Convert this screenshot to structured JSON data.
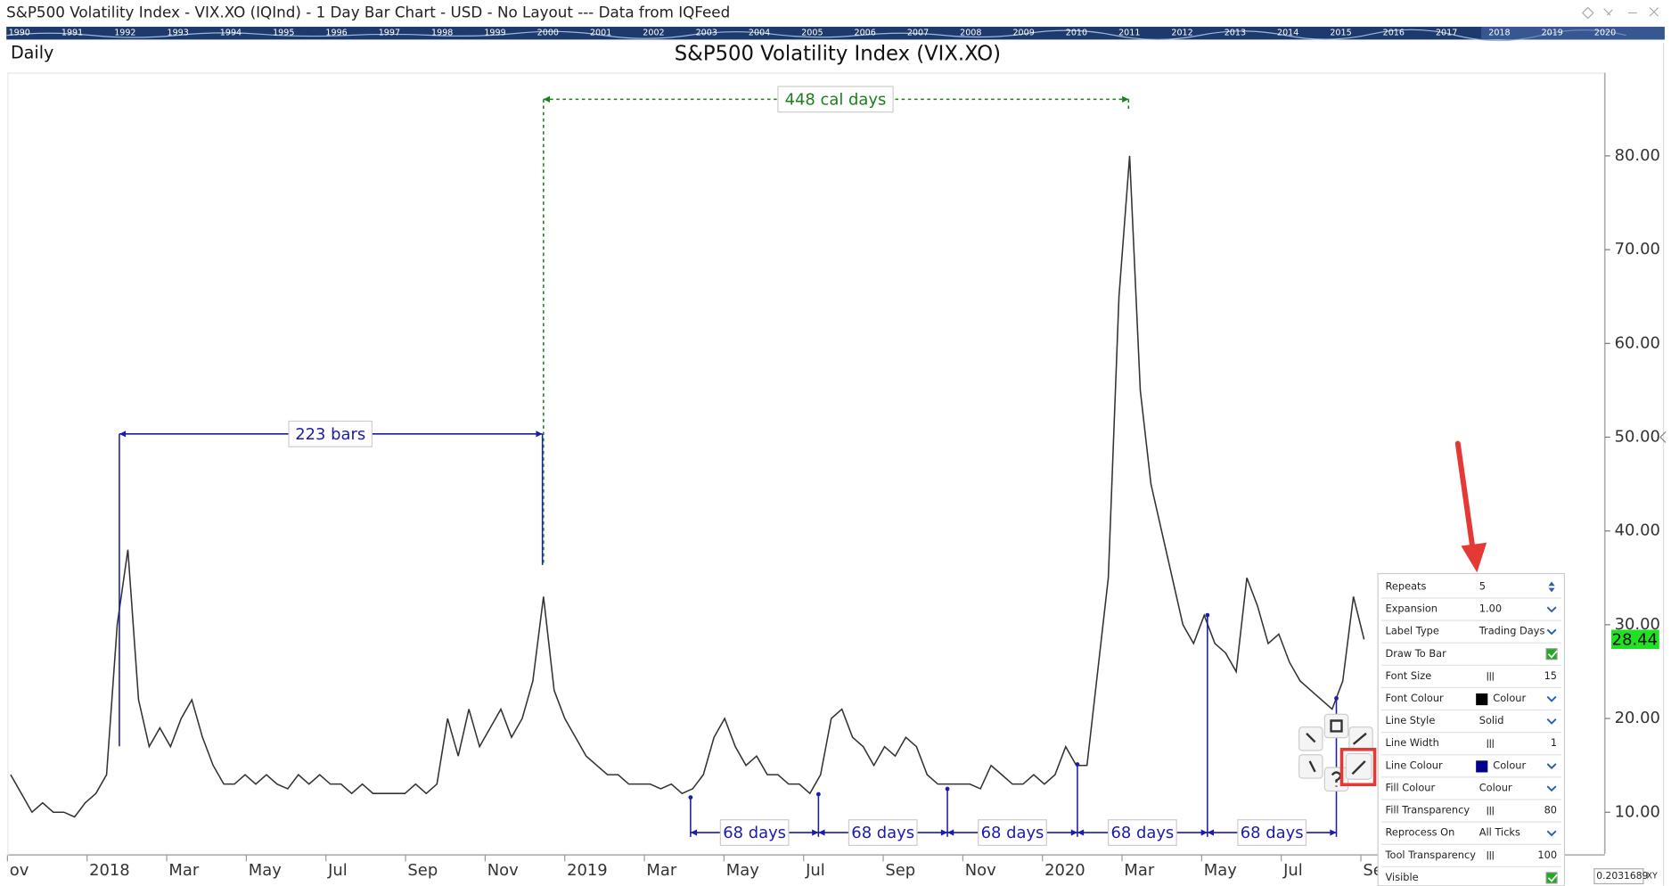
{
  "window": {
    "title": "S&P500 Volatility Index - VIX.XO (IQInd) - 1 Day Bar Chart - USD - No Layout --- Data from IQFeed",
    "overview_years": [
      "1990",
      "1991",
      "1992",
      "1993",
      "1994",
      "1995",
      "1996",
      "1997",
      "1998",
      "1999",
      "2000",
      "2001",
      "2002",
      "2003",
      "2004",
      "2005",
      "2006",
      "2007",
      "2008",
      "2009",
      "2010",
      "2011",
      "2012",
      "2013",
      "2014",
      "2015",
      "2016",
      "2017",
      "2018",
      "2019",
      "2020"
    ]
  },
  "chart_data": {
    "type": "line",
    "title": "S&P500 Volatility Index (VIX.XO)",
    "period": "Daily",
    "color": "#333333",
    "x_labels": [
      "ov",
      "2018",
      "Mar",
      "May",
      "Jul",
      "Sep",
      "Nov",
      "2019",
      "Mar",
      "May",
      "Jul",
      "Sep",
      "Nov",
      "2020",
      "Mar",
      "May",
      "Jul",
      "Sep"
    ],
    "values": [
      14,
      12,
      10,
      11,
      10,
      10,
      9.5,
      11,
      12,
      14,
      30,
      38,
      22,
      17,
      19,
      17,
      20,
      22,
      18,
      15,
      13,
      13,
      14,
      13,
      14,
      13,
      12.5,
      14,
      13,
      14,
      13,
      13,
      12,
      13,
      12,
      12,
      12,
      12,
      13,
      12,
      13,
      20,
      16,
      21,
      17,
      19,
      21,
      18,
      20,
      24,
      33,
      23,
      20,
      18,
      16,
      15,
      14,
      14,
      13,
      13,
      13,
      12.5,
      13,
      12,
      12.5,
      14,
      18,
      20,
      17,
      15,
      16,
      14,
      14,
      13,
      13,
      12,
      14,
      20,
      21,
      18,
      17,
      15,
      17,
      16,
      18,
      17,
      14,
      13,
      13,
      13,
      13,
      12.5,
      15,
      14,
      13,
      13,
      14,
      13,
      14,
      17,
      15,
      15,
      25,
      35,
      65,
      80,
      55,
      45,
      40,
      35,
      30,
      28,
      31,
      28,
      27,
      25,
      35,
      32,
      28,
      29,
      26,
      24,
      23,
      22,
      21,
      24,
      33,
      28.44
    ],
    "ylim": [
      5.56,
      88.88
    ],
    "yticks": [
      {
        "value": 10,
        "label": "10.00"
      },
      {
        "value": 20,
        "label": "20.00"
      },
      {
        "value": 30,
        "label": "30.00"
      },
      {
        "value": 40,
        "label": "40.00"
      },
      {
        "value": 50,
        "label": "50.00"
      },
      {
        "value": 60,
        "label": "60.00"
      },
      {
        "value": 70,
        "label": "70.00"
      },
      {
        "value": 80,
        "label": "80.00"
      }
    ],
    "last_price": {
      "value": 28.44,
      "label": "28.44"
    },
    "bar_ruler": "223 bars",
    "day_ruler": "448 cal days",
    "cycle_labels": [
      "68 days",
      "68 days",
      "68 days",
      "68 days",
      "68 days"
    ]
  },
  "panel": {
    "rows": [
      {
        "label": "Repeats",
        "value": "5"
      },
      {
        "label": "Expansion",
        "value": "1.00"
      },
      {
        "label": "Label Type",
        "value": "Trading Days"
      },
      {
        "label": "Draw To Bar",
        "checked": true
      },
      {
        "label": "Font Size",
        "value": "15"
      },
      {
        "label": "Font Colour",
        "value": "Colour",
        "swatch": "#000000"
      },
      {
        "label": "Line Style",
        "value": "Solid"
      },
      {
        "label": "Line Width",
        "value": "1"
      },
      {
        "label": "Line Colour",
        "value": "Colour",
        "swatch": "#00008b"
      },
      {
        "label": "Fill Colour",
        "value": "Colour"
      },
      {
        "label": "Fill Transparency",
        "value": "80"
      },
      {
        "label": "Reprocess On",
        "value": "All Ticks"
      },
      {
        "label": "Tool Transparency",
        "value": "100"
      },
      {
        "label": "Visible",
        "checked": true
      }
    ]
  },
  "status": {
    "cursor_value": "0.2031689",
    "mode": "XY"
  }
}
